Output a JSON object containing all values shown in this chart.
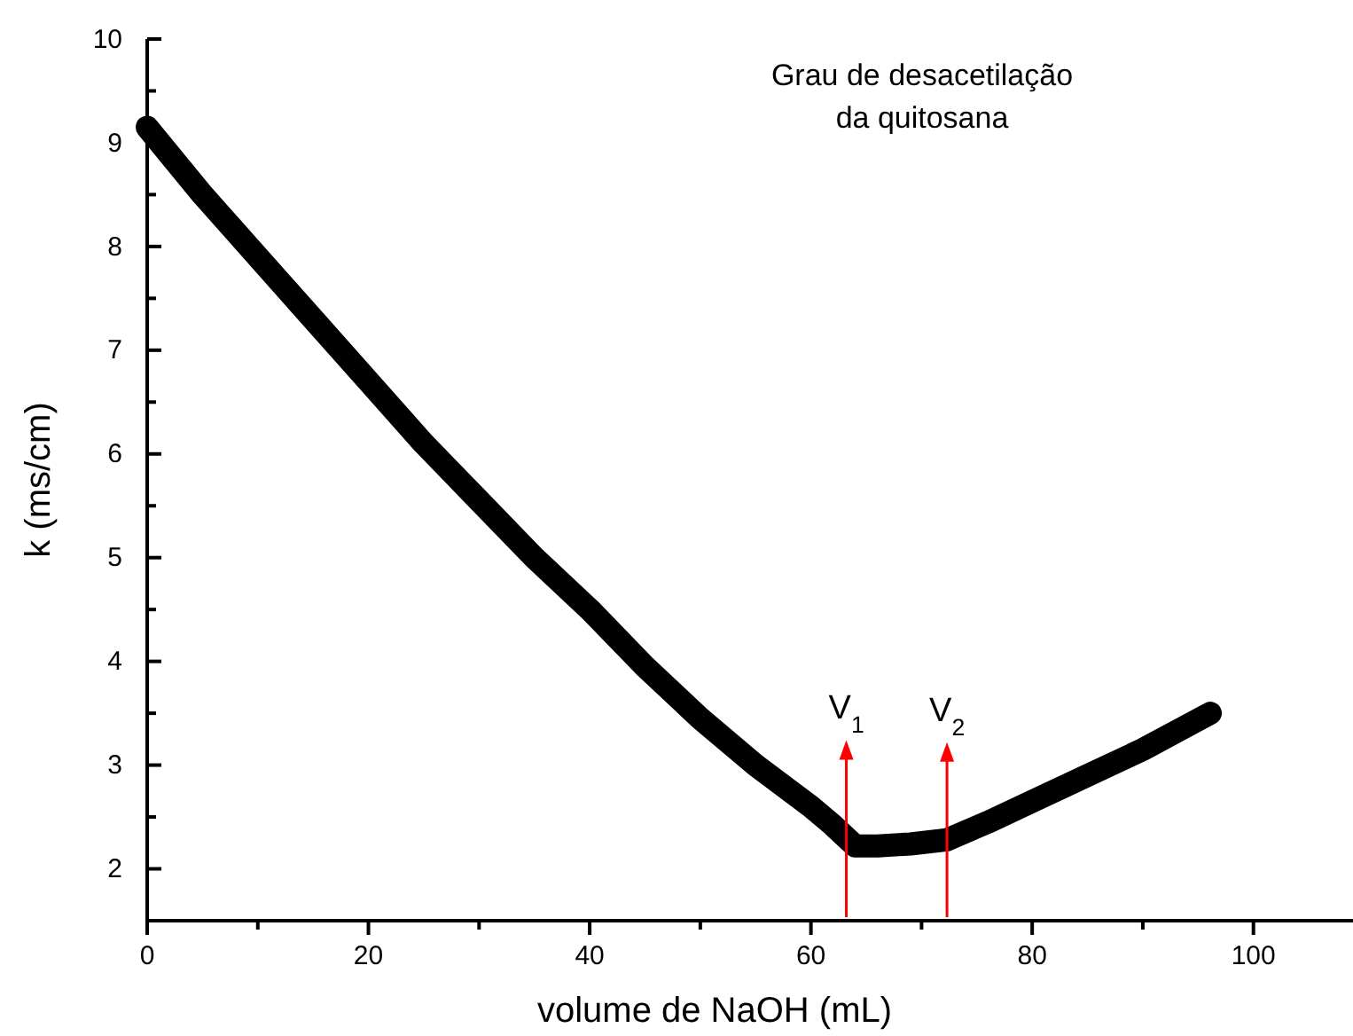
{
  "chart_data": {
    "type": "line",
    "title": "Grau de desacetilação da quitosana",
    "xlabel": "volume de NaOH (mL)",
    "ylabel": "k (ms/cm)",
    "xlim": [
      0,
      109
    ],
    "xticks": [
      0,
      20,
      40,
      60,
      80,
      100
    ],
    "ylim": [
      1.5,
      10
    ],
    "yticks": [
      2,
      3,
      4,
      5,
      6,
      7,
      8,
      9,
      10
    ],
    "grid": false,
    "line_style": "solid",
    "series": [
      {
        "color": "#000000",
        "x": [
          0,
          5,
          10,
          15,
          20,
          25,
          30,
          35,
          40,
          45,
          50,
          55,
          60,
          62,
          63.2,
          64,
          66,
          69,
          72.3,
          76,
          80,
          85,
          90,
          96.1
        ],
        "values": [
          9.15,
          8.5,
          7.9,
          7.3,
          6.7,
          6.1,
          5.55,
          5.0,
          4.5,
          3.95,
          3.45,
          3.0,
          2.6,
          2.42,
          2.3,
          2.22,
          2.22,
          2.24,
          2.28,
          2.45,
          2.65,
          2.9,
          3.15,
          3.5
        ]
      }
    ],
    "annotations": [
      {
        "text": "V$_{1}$",
        "x": 63.2,
        "y": 2.3
      },
      {
        "text": "V$_{2}$",
        "x": 72.3,
        "y": 2.28
      }
    ]
  }
}
